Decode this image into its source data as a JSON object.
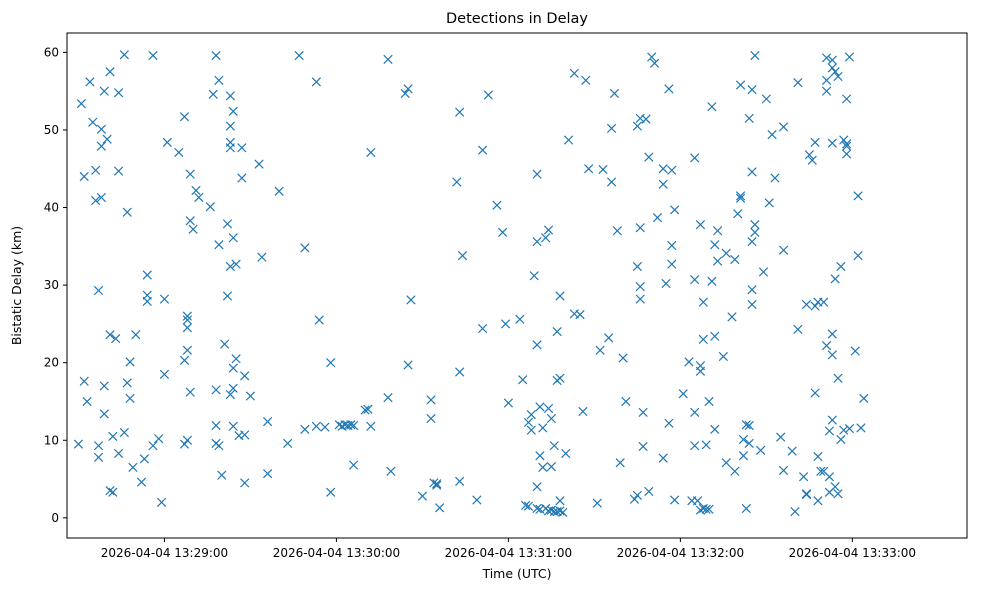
{
  "chart_data": {
    "type": "scatter",
    "title": "Detections in Delay",
    "xlabel": "Time (UTC)",
    "ylabel": "Bistatic Delay (km)",
    "x_unit": "HH:MM:SS on 2026-04-04",
    "xlim": [
      "13:28:26",
      "13:33:40"
    ],
    "ylim": [
      -2.6,
      62.5
    ],
    "x_ticks": [
      {
        "value": "13:29:00",
        "label": "2026-04-04 13:29:00"
      },
      {
        "value": "13:30:00",
        "label": "2026-04-04 13:30:00"
      },
      {
        "value": "13:31:00",
        "label": "2026-04-04 13:31:00"
      },
      {
        "value": "13:32:00",
        "label": "2026-04-04 13:32:00"
      },
      {
        "value": "13:33:00",
        "label": "2026-04-04 13:33:00"
      }
    ],
    "y_ticks": [
      0,
      10,
      20,
      30,
      40,
      50,
      60
    ],
    "grid": false,
    "legend": "none",
    "marker": "x",
    "color": "#1f77b4",
    "points": [
      [
        "13:28:30",
        9.5
      ],
      [
        "13:28:31",
        53.4
      ],
      [
        "13:28:32",
        44
      ],
      [
        "13:28:32",
        17.6
      ],
      [
        "13:28:33",
        15
      ],
      [
        "13:28:34",
        56.2
      ],
      [
        "13:28:35",
        51
      ],
      [
        "13:28:36",
        40.9
      ],
      [
        "13:28:36",
        44.8
      ],
      [
        "13:28:37",
        7.8
      ],
      [
        "13:28:37",
        9.3
      ],
      [
        "13:28:37",
        29.3
      ],
      [
        "13:28:38",
        47.9
      ],
      [
        "13:28:38",
        41.3
      ],
      [
        "13:28:38",
        50.1
      ],
      [
        "13:28:39",
        55
      ],
      [
        "13:28:39",
        17
      ],
      [
        "13:28:39",
        13.4
      ],
      [
        "13:28:40",
        48.8
      ],
      [
        "13:28:41",
        57.5
      ],
      [
        "13:28:41",
        23.6
      ],
      [
        "13:28:41",
        3.5
      ],
      [
        "13:28:42",
        3.3
      ],
      [
        "13:28:42",
        10.5
      ],
      [
        "13:28:43",
        23.1
      ],
      [
        "13:28:44",
        54.8
      ],
      [
        "13:28:44",
        44.7
      ],
      [
        "13:28:44",
        8.3
      ],
      [
        "13:28:46",
        59.7
      ],
      [
        "13:28:46",
        11
      ],
      [
        "13:28:47",
        39.4
      ],
      [
        "13:28:47",
        17.4
      ],
      [
        "13:28:48",
        15.4
      ],
      [
        "13:28:48",
        20.1
      ],
      [
        "13:28:49",
        6.5
      ],
      [
        "13:28:50",
        23.6
      ],
      [
        "13:28:52",
        4.6
      ],
      [
        "13:28:53",
        7.6
      ],
      [
        "13:28:54",
        31.3
      ],
      [
        "13:28:54",
        28.7
      ],
      [
        "13:28:54",
        27.9
      ],
      [
        "13:28:56",
        59.6
      ],
      [
        "13:28:56",
        9.3
      ],
      [
        "13:28:58",
        10.2
      ],
      [
        "13:28:59",
        2
      ],
      [
        "13:29:00",
        18.5
      ],
      [
        "13:29:00",
        28.2
      ],
      [
        "13:29:01",
        48.4
      ],
      [
        "13:29:05",
        47.1
      ],
      [
        "13:29:07",
        51.7
      ],
      [
        "13:29:07",
        20.3
      ],
      [
        "13:29:07",
        9.5
      ],
      [
        "13:29:08",
        26
      ],
      [
        "13:29:08",
        25.5
      ],
      [
        "13:29:08",
        24.5
      ],
      [
        "13:29:08",
        21.6
      ],
      [
        "13:29:08",
        10
      ],
      [
        "13:29:09",
        44.3
      ],
      [
        "13:29:09",
        38.3
      ],
      [
        "13:29:09",
        16.2
      ],
      [
        "13:29:10",
        37.2
      ],
      [
        "13:29:11",
        42.2
      ],
      [
        "13:29:12",
        41.3
      ],
      [
        "13:29:16",
        40.1
      ],
      [
        "13:29:17",
        54.6
      ],
      [
        "13:29:18",
        59.6
      ],
      [
        "13:29:18",
        16.5
      ],
      [
        "13:29:18",
        11.9
      ],
      [
        "13:29:18",
        9.6
      ],
      [
        "13:29:19",
        56.4
      ],
      [
        "13:29:19",
        35.2
      ],
      [
        "13:29:19",
        9.3
      ],
      [
        "13:29:20",
        5.5
      ],
      [
        "13:29:21",
        22.4
      ],
      [
        "13:29:22",
        28.6
      ],
      [
        "13:29:22",
        37.9
      ],
      [
        "13:29:23",
        54.4
      ],
      [
        "13:29:23",
        50.5
      ],
      [
        "13:29:23",
        48.4
      ],
      [
        "13:29:23",
        47.7
      ],
      [
        "13:29:23",
        32.4
      ],
      [
        "13:29:23",
        15.9
      ],
      [
        "13:29:24",
        36.1
      ],
      [
        "13:29:24",
        52.4
      ],
      [
        "13:29:24",
        19.3
      ],
      [
        "13:29:24",
        11.8
      ],
      [
        "13:29:24",
        16.7
      ],
      [
        "13:29:25",
        20.5
      ],
      [
        "13:29:25",
        32.7
      ],
      [
        "13:29:26",
        10.6
      ],
      [
        "13:29:27",
        47.7
      ],
      [
        "13:29:27",
        43.8
      ],
      [
        "13:29:28",
        18.3
      ],
      [
        "13:29:28",
        4.5
      ],
      [
        "13:29:28",
        10.7
      ],
      [
        "13:29:30",
        15.7
      ],
      [
        "13:29:33",
        45.6
      ],
      [
        "13:29:34",
        33.6
      ],
      [
        "13:29:36",
        12.4
      ],
      [
        "13:29:36",
        5.7
      ],
      [
        "13:29:40",
        42.1
      ],
      [
        "13:29:43",
        9.6
      ],
      [
        "13:29:47",
        59.6
      ],
      [
        "13:29:49",
        34.8
      ],
      [
        "13:29:49",
        11.4
      ],
      [
        "13:29:53",
        56.2
      ],
      [
        "13:29:53",
        11.8
      ],
      [
        "13:29:54",
        25.5
      ],
      [
        "13:29:56",
        11.7
      ],
      [
        "13:29:58",
        20
      ],
      [
        "13:29:58",
        3.3
      ],
      [
        "13:30:01",
        12
      ],
      [
        "13:30:02",
        11.8
      ],
      [
        "13:30:03",
        12
      ],
      [
        "13:30:04",
        11.9
      ],
      [
        "13:30:05",
        12
      ],
      [
        "13:30:06",
        6.8
      ],
      [
        "13:30:06",
        11.9
      ],
      [
        "13:30:10",
        13.9
      ],
      [
        "13:30:11",
        14
      ],
      [
        "13:30:12",
        11.8
      ],
      [
        "13:30:12",
        47.1
      ],
      [
        "13:30:18",
        59.1
      ],
      [
        "13:30:18",
        15.5
      ],
      [
        "13:30:19",
        6
      ],
      [
        "13:30:24",
        54.7
      ],
      [
        "13:30:25",
        55.3
      ],
      [
        "13:30:25",
        19.7
      ],
      [
        "13:30:26",
        28.1
      ],
      [
        "13:30:30",
        2.8
      ],
      [
        "13:30:33",
        15.2
      ],
      [
        "13:30:33",
        12.8
      ],
      [
        "13:30:34",
        4.5
      ],
      [
        "13:30:35",
        4.2
      ],
      [
        "13:30:35",
        4.4
      ],
      [
        "13:30:36",
        1.3
      ],
      [
        "13:30:42",
        43.3
      ],
      [
        "13:30:43",
        52.3
      ],
      [
        "13:30:43",
        18.8
      ],
      [
        "13:30:43",
        4.7
      ],
      [
        "13:30:44",
        33.8
      ],
      [
        "13:30:49",
        2.3
      ],
      [
        "13:30:51",
        24.4
      ],
      [
        "13:30:51",
        47.4
      ],
      [
        "13:30:53",
        54.5
      ],
      [
        "13:30:56",
        40.3
      ],
      [
        "13:30:58",
        36.8
      ],
      [
        "13:30:59",
        25
      ],
      [
        "13:31:00",
        14.8
      ],
      [
        "13:31:04",
        25.6
      ],
      [
        "13:31:05",
        17.8
      ],
      [
        "13:31:06",
        1.6
      ],
      [
        "13:31:07",
        1.5
      ],
      [
        "13:31:07",
        12.3
      ],
      [
        "13:31:08",
        11.3
      ],
      [
        "13:31:08",
        13.3
      ],
      [
        "13:31:09",
        31.2
      ],
      [
        "13:31:10",
        35.6
      ],
      [
        "13:31:10",
        22.3
      ],
      [
        "13:31:10",
        4
      ],
      [
        "13:31:10",
        44.3
      ],
      [
        "13:31:10",
        1.2
      ],
      [
        "13:31:11",
        8
      ],
      [
        "13:31:11",
        14.3
      ],
      [
        "13:31:11",
        1.1
      ],
      [
        "13:31:12",
        11.6
      ],
      [
        "13:31:12",
        6.5
      ],
      [
        "13:31:13",
        36.1
      ],
      [
        "13:31:13",
        1.2
      ],
      [
        "13:31:14",
        37.1
      ],
      [
        "13:31:14",
        14.1
      ],
      [
        "13:31:14",
        0.9
      ],
      [
        "13:31:15",
        6.6
      ],
      [
        "13:31:15",
        12.8
      ],
      [
        "13:31:15",
        1
      ],
      [
        "13:31:16",
        9.3
      ],
      [
        "13:31:16",
        0.8
      ],
      [
        "13:31:17",
        17.7
      ],
      [
        "13:31:17",
        24
      ],
      [
        "13:31:17",
        0.8
      ],
      [
        "13:31:18",
        28.6
      ],
      [
        "13:31:18",
        2.2
      ],
      [
        "13:31:18",
        18
      ],
      [
        "13:31:18",
        0.9
      ],
      [
        "13:31:19",
        0.7
      ],
      [
        "13:31:20",
        8.3
      ],
      [
        "13:31:21",
        48.7
      ],
      [
        "13:31:23",
        57.3
      ],
      [
        "13:31:23",
        26.3
      ],
      [
        "13:31:25",
        26.2
      ],
      [
        "13:31:26",
        13.7
      ],
      [
        "13:31:27",
        56.4
      ],
      [
        "13:31:28",
        45
      ],
      [
        "13:31:31",
        1.9
      ],
      [
        "13:31:32",
        21.6
      ],
      [
        "13:31:33",
        44.9
      ],
      [
        "13:31:35",
        23.2
      ],
      [
        "13:31:36",
        43.3
      ],
      [
        "13:31:36",
        50.2
      ],
      [
        "13:31:37",
        54.7
      ],
      [
        "13:31:38",
        37
      ],
      [
        "13:31:39",
        7.1
      ],
      [
        "13:31:40",
        20.6
      ],
      [
        "13:31:41",
        15
      ],
      [
        "13:31:44",
        2.4
      ],
      [
        "13:31:45",
        2.9
      ],
      [
        "13:31:45",
        32.4
      ],
      [
        "13:31:45",
        50.5
      ],
      [
        "13:31:46",
        51.5
      ],
      [
        "13:31:46",
        37.4
      ],
      [
        "13:31:46",
        29.8
      ],
      [
        "13:31:46",
        28.2
      ],
      [
        "13:31:47",
        13.6
      ],
      [
        "13:31:47",
        9.2
      ],
      [
        "13:31:48",
        51.4
      ],
      [
        "13:31:49",
        46.5
      ],
      [
        "13:31:49",
        3.4
      ],
      [
        "13:31:50",
        59.4
      ],
      [
        "13:31:51",
        58.6
      ],
      [
        "13:31:52",
        38.7
      ],
      [
        "13:31:54",
        45
      ],
      [
        "13:31:54",
        43
      ],
      [
        "13:31:54",
        7.7
      ],
      [
        "13:31:55",
        30.2
      ],
      [
        "13:31:56",
        12.2
      ],
      [
        "13:31:56",
        55.3
      ],
      [
        "13:31:57",
        44.8
      ],
      [
        "13:31:57",
        35.1
      ],
      [
        "13:31:57",
        32.7
      ],
      [
        "13:31:58",
        39.7
      ],
      [
        "13:31:58",
        2.3
      ],
      [
        "13:32:01",
        16
      ],
      [
        "13:32:03",
        20.1
      ],
      [
        "13:32:04",
        2.2
      ],
      [
        "13:32:05",
        46.4
      ],
      [
        "13:32:05",
        13.6
      ],
      [
        "13:32:05",
        9.3
      ],
      [
        "13:32:05",
        30.7
      ],
      [
        "13:32:06",
        2.2
      ],
      [
        "13:32:07",
        37.8
      ],
      [
        "13:32:07",
        19.6
      ],
      [
        "13:32:07",
        18.9
      ],
      [
        "13:32:07",
        1
      ],
      [
        "13:32:08",
        27.8
      ],
      [
        "13:32:08",
        23
      ],
      [
        "13:32:08",
        1.2
      ],
      [
        "13:32:09",
        9.4
      ],
      [
        "13:32:09",
        1.1
      ],
      [
        "13:32:10",
        1.1
      ],
      [
        "13:32:10",
        15
      ],
      [
        "13:32:11",
        53
      ],
      [
        "13:32:11",
        30.5
      ],
      [
        "13:32:12",
        23.4
      ],
      [
        "13:32:12",
        11.4
      ],
      [
        "13:32:12",
        35.2
      ],
      [
        "13:32:13",
        33.1
      ],
      [
        "13:32:13",
        37
      ],
      [
        "13:32:15",
        20.8
      ],
      [
        "13:32:16",
        34.1
      ],
      [
        "13:32:16",
        7.1
      ],
      [
        "13:32:18",
        25.9
      ],
      [
        "13:32:19",
        6
      ],
      [
        "13:32:19",
        33.3
      ],
      [
        "13:32:20",
        39.2
      ],
      [
        "13:32:21",
        55.8
      ],
      [
        "13:32:21",
        41.5
      ],
      [
        "13:32:21",
        41.2
      ],
      [
        "13:32:22",
        10.1
      ],
      [
        "13:32:22",
        8
      ],
      [
        "13:32:23",
        12
      ],
      [
        "13:32:23",
        1.2
      ],
      [
        "13:32:24",
        9.6
      ],
      [
        "13:32:24",
        11.9
      ],
      [
        "13:32:24",
        51.5
      ],
      [
        "13:32:25",
        35.6
      ],
      [
        "13:32:25",
        29.4
      ],
      [
        "13:32:25",
        27.5
      ],
      [
        "13:32:25",
        44.6
      ],
      [
        "13:32:25",
        55.2
      ],
      [
        "13:32:26",
        59.6
      ],
      [
        "13:32:26",
        37.8
      ],
      [
        "13:32:26",
        36.8
      ],
      [
        "13:32:28",
        8.7
      ],
      [
        "13:32:29",
        31.7
      ],
      [
        "13:32:30",
        54
      ],
      [
        "13:32:31",
        40.6
      ],
      [
        "13:32:32",
        49.4
      ],
      [
        "13:32:33",
        43.8
      ],
      [
        "13:32:35",
        10.4
      ],
      [
        "13:32:36",
        6.1
      ],
      [
        "13:32:36",
        50.4
      ],
      [
        "13:32:36",
        34.5
      ],
      [
        "13:32:39",
        8.6
      ],
      [
        "13:32:40",
        0.8
      ],
      [
        "13:32:41",
        56.1
      ],
      [
        "13:32:41",
        24.3
      ],
      [
        "13:32:43",
        5.3
      ],
      [
        "13:32:44",
        27.5
      ],
      [
        "13:32:44",
        3
      ],
      [
        "13:32:44",
        3.1
      ],
      [
        "13:32:45",
        46.8
      ],
      [
        "13:32:46",
        46.1
      ],
      [
        "13:32:47",
        48.4
      ],
      [
        "13:32:47",
        27.3
      ],
      [
        "13:32:47",
        16.1
      ],
      [
        "13:32:48",
        2.2
      ],
      [
        "13:32:48",
        27.8
      ],
      [
        "13:32:48",
        7.9
      ],
      [
        "13:32:49",
        6
      ],
      [
        "13:32:50",
        6
      ],
      [
        "13:32:50",
        27.8
      ],
      [
        "13:32:51",
        56.4
      ],
      [
        "13:32:51",
        55
      ],
      [
        "13:32:51",
        22.2
      ],
      [
        "13:32:51",
        59.3
      ],
      [
        "13:32:52",
        11.2
      ],
      [
        "13:32:52",
        3.3
      ],
      [
        "13:32:52",
        5.3
      ],
      [
        "13:32:53",
        58
      ],
      [
        "13:32:53",
        59
      ],
      [
        "13:32:53",
        48.3
      ],
      [
        "13:32:53",
        23.7
      ],
      [
        "13:32:53",
        21
      ],
      [
        "13:32:53",
        12.6
      ],
      [
        "13:32:54",
        4
      ],
      [
        "13:32:54",
        57.5
      ],
      [
        "13:32:54",
        30.8
      ],
      [
        "13:32:55",
        56.9
      ],
      [
        "13:32:55",
        3.1
      ],
      [
        "13:32:55",
        18
      ],
      [
        "13:32:56",
        10.1
      ],
      [
        "13:32:56",
        32.4
      ],
      [
        "13:32:57",
        11.3
      ],
      [
        "13:32:57",
        48.7
      ],
      [
        "13:32:58",
        48.2
      ],
      [
        "13:32:58",
        47.9
      ],
      [
        "13:32:58",
        46.9
      ],
      [
        "13:32:58",
        54
      ],
      [
        "13:32:59",
        59.4
      ],
      [
        "13:32:59",
        11.5
      ],
      [
        "13:33:01",
        21.5
      ],
      [
        "13:33:02",
        41.5
      ],
      [
        "13:33:02",
        33.8
      ],
      [
        "13:33:03",
        11.6
      ],
      [
        "13:33:04",
        15.4
      ]
    ]
  }
}
